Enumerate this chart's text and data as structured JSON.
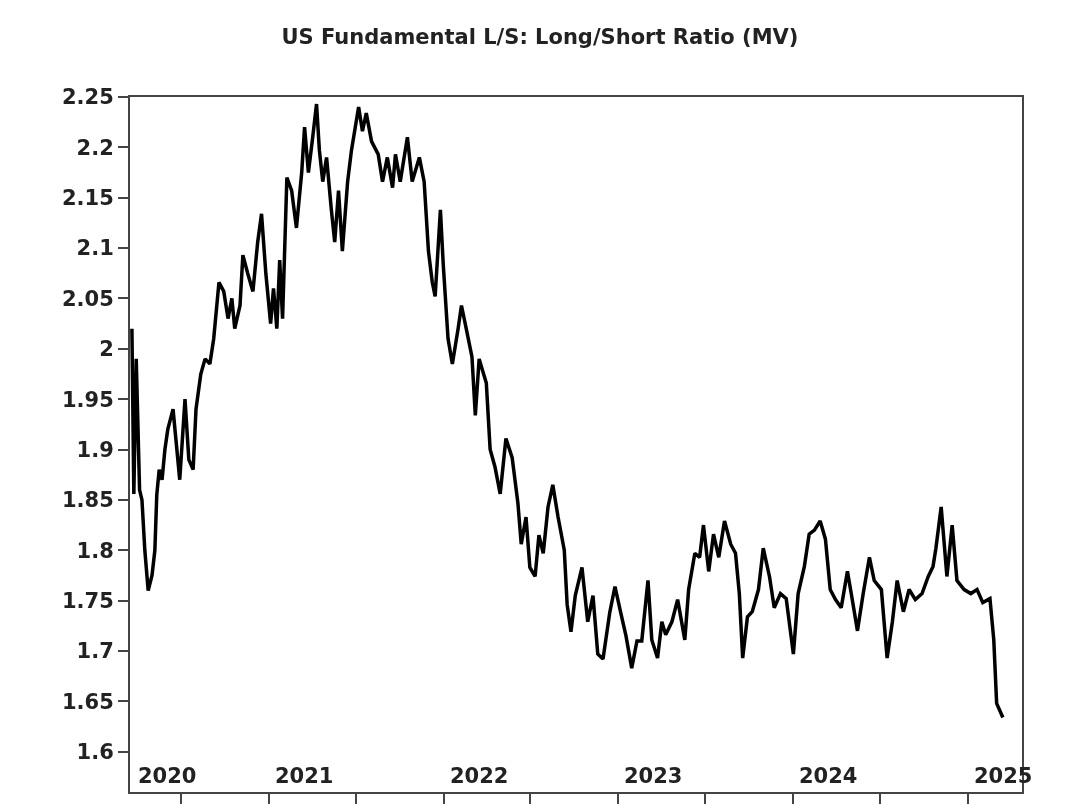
{
  "chart_data": {
    "type": "line",
    "title": "US Fundamental L/S: Long/Short Ratio (MV)",
    "x": [
      "2020-03-20",
      "2020-03-24",
      "2020-03-29",
      "2020-04-05",
      "2020-04-10",
      "2020-04-16",
      "2020-04-23",
      "2020-05-01",
      "2020-05-07",
      "2020-05-11",
      "2020-05-16",
      "2020-05-22",
      "2020-05-28",
      "2020-06-03",
      "2020-06-14",
      "2020-06-20",
      "2020-06-28",
      "2020-07-09",
      "2020-07-17",
      "2020-07-26",
      "2020-08-01",
      "2020-08-11",
      "2020-08-20",
      "2020-08-30",
      "2020-09-07",
      "2020-09-18",
      "2020-09-28",
      "2020-10-07",
      "2020-10-15",
      "2020-10-21",
      "2020-11-01",
      "2020-11-07",
      "2020-11-17",
      "2020-11-28",
      "2020-12-08",
      "2020-12-16",
      "2020-12-25",
      "2021-01-04",
      "2021-01-10",
      "2021-01-17",
      "2021-01-23",
      "2021-01-29",
      "2021-02-07",
      "2021-02-17",
      "2021-02-27",
      "2021-03-10",
      "2021-03-16",
      "2021-03-24",
      "2021-04-02",
      "2021-04-10",
      "2021-04-16",
      "2021-04-23",
      "2021-05-01",
      "2021-05-11",
      "2021-05-18",
      "2021-05-26",
      "2021-06-03",
      "2021-06-14",
      "2021-06-22",
      "2021-07-07",
      "2021-07-15",
      "2021-07-23",
      "2021-08-03",
      "2021-08-17",
      "2021-08-26",
      "2021-09-05",
      "2021-09-16",
      "2021-09-22",
      "2021-10-02",
      "2021-10-17",
      "2021-10-27",
      "2021-11-11",
      "2021-11-21",
      "2021-11-30",
      "2021-12-08",
      "2021-12-14",
      "2021-12-25",
      "2021-12-31",
      "2022-01-10",
      "2022-01-19",
      "2022-01-31",
      "2022-02-07",
      "2022-02-17",
      "2022-03-01",
      "2022-03-08",
      "2022-03-16",
      "2022-03-31",
      "2022-04-08",
      "2022-04-18",
      "2022-04-29",
      "2022-05-11",
      "2022-05-24",
      "2022-06-05",
      "2022-06-12",
      "2022-06-22",
      "2022-06-30",
      "2022-07-11",
      "2022-07-19",
      "2022-07-28",
      "2022-08-07",
      "2022-08-17",
      "2022-08-28",
      "2022-09-10",
      "2022-09-16",
      "2022-09-24",
      "2022-10-03",
      "2022-10-17",
      "2022-10-29",
      "2022-11-09",
      "2022-11-19",
      "2022-11-30",
      "2022-12-14",
      "2022-12-25",
      "2023-01-06",
      "2023-01-17",
      "2023-01-29",
      "2023-02-09",
      "2023-02-19",
      "2023-03-04",
      "2023-03-12",
      "2023-03-24",
      "2023-04-02",
      "2023-04-10",
      "2023-04-23",
      "2023-05-05",
      "2023-05-20",
      "2023-05-28",
      "2023-06-10",
      "2023-06-20",
      "2023-06-28",
      "2023-07-09",
      "2023-07-19",
      "2023-07-30",
      "2023-08-11",
      "2023-08-24",
      "2023-09-03",
      "2023-09-11",
      "2023-09-18",
      "2023-09-28",
      "2023-10-08",
      "2023-10-21",
      "2023-10-31",
      "2023-11-13",
      "2023-11-23",
      "2023-12-06",
      "2023-12-18",
      "2024-01-02",
      "2024-01-12",
      "2024-01-25",
      "2024-02-04",
      "2024-02-15",
      "2024-02-27",
      "2024-03-09",
      "2024-03-19",
      "2024-03-30",
      "2024-04-11",
      "2024-04-24",
      "2024-05-02",
      "2024-05-15",
      "2024-05-27",
      "2024-06-09",
      "2024-06-19",
      "2024-07-04",
      "2024-07-16",
      "2024-07-27",
      "2024-08-06",
      "2024-08-19",
      "2024-08-31",
      "2024-09-13",
      "2024-09-27",
      "2024-10-10",
      "2024-10-20",
      "2024-10-26",
      "2024-11-06",
      "2024-11-18",
      "2024-11-29",
      "2024-12-09",
      "2024-12-24",
      "2025-01-07",
      "2025-01-20",
      "2025-02-01",
      "2025-02-16",
      "2025-02-24",
      "2025-03-02",
      "2025-03-15"
    ],
    "series": [
      {
        "color": "#000000",
        "values": [
          2.02,
          1.856,
          1.99,
          1.86,
          1.85,
          1.8,
          1.76,
          1.775,
          1.8,
          1.855,
          1.88,
          1.87,
          1.9,
          1.92,
          1.94,
          1.91,
          1.87,
          1.95,
          1.89,
          1.88,
          1.94,
          1.975,
          1.99,
          1.985,
          2.01,
          2.066,
          2.057,
          2.03,
          2.05,
          2.02,
          2.043,
          2.093,
          2.075,
          2.057,
          2.106,
          2.134,
          2.075,
          2.025,
          2.06,
          2.02,
          2.088,
          2.03,
          2.17,
          2.157,
          2.12,
          2.175,
          2.22,
          2.175,
          2.21,
          2.243,
          2.197,
          2.166,
          2.19,
          2.138,
          2.106,
          2.157,
          2.097,
          2.166,
          2.197,
          2.24,
          2.216,
          2.234,
          2.206,
          2.193,
          2.166,
          2.19,
          2.16,
          2.193,
          2.166,
          2.21,
          2.166,
          2.19,
          2.166,
          2.097,
          2.066,
          2.052,
          2.138,
          2.083,
          2.01,
          1.985,
          2.02,
          2.043,
          2.02,
          1.992,
          1.934,
          1.99,
          1.966,
          1.9,
          1.883,
          1.856,
          1.911,
          1.892,
          1.847,
          1.806,
          1.833,
          1.783,
          1.774,
          1.815,
          1.797,
          1.843,
          1.865,
          1.833,
          1.8,
          1.746,
          1.719,
          1.755,
          1.783,
          1.729,
          1.755,
          1.697,
          1.692,
          1.738,
          1.764,
          1.738,
          1.715,
          1.683,
          1.71,
          1.71,
          1.77,
          1.711,
          1.693,
          1.729,
          1.716,
          1.729,
          1.751,
          1.711,
          1.761,
          1.797,
          1.793,
          1.825,
          1.779,
          1.816,
          1.793,
          1.829,
          1.806,
          1.797,
          1.757,
          1.693,
          1.734,
          1.739,
          1.761,
          1.802,
          1.774,
          1.743,
          1.757,
          1.752,
          1.697,
          1.757,
          1.784,
          1.816,
          1.82,
          1.829,
          1.811,
          1.761,
          1.751,
          1.743,
          1.779,
          1.757,
          1.72,
          1.757,
          1.793,
          1.77,
          1.761,
          1.693,
          1.729,
          1.77,
          1.739,
          1.761,
          1.751,
          1.757,
          1.774,
          1.784,
          1.802,
          1.843,
          1.774,
          1.825,
          1.77,
          1.761,
          1.757,
          1.761,
          1.748,
          1.752,
          1.711,
          1.648,
          1.634
        ]
      }
    ],
    "xlim": [
      "2020-03-16",
      "2025-04-24"
    ],
    "xticks": [
      {
        "value": "2020-06-01",
        "label": "2020"
      },
      {
        "value": "2021-03-15",
        "label": "2021"
      },
      {
        "value": "2022-03-15",
        "label": "2022"
      },
      {
        "value": "2023-03-15",
        "label": "2023"
      },
      {
        "value": "2024-03-15",
        "label": "2024"
      },
      {
        "value": "2025-03-15",
        "label": "2025"
      },
      {
        "value": "2020-07-01",
        "label": null
      },
      {
        "value": "2021-01-01",
        "label": null
      },
      {
        "value": "2021-07-01",
        "label": null
      },
      {
        "value": "2022-01-01",
        "label": null
      },
      {
        "value": "2022-07-01",
        "label": null
      },
      {
        "value": "2023-01-01",
        "label": null
      },
      {
        "value": "2023-07-01",
        "label": null
      },
      {
        "value": "2024-01-01",
        "label": null
      },
      {
        "value": "2024-07-01",
        "label": null
      },
      {
        "value": "2025-01-01",
        "label": null
      }
    ],
    "ylim": [
      1.56,
      2.25
    ],
    "yticks": [
      1.6,
      1.65,
      1.7,
      1.75,
      1.8,
      1.85,
      1.9,
      1.95,
      2,
      2.05,
      2.1,
      2.15,
      2.2,
      2.25
    ],
    "marker": "none",
    "line_style": "solid"
  }
}
